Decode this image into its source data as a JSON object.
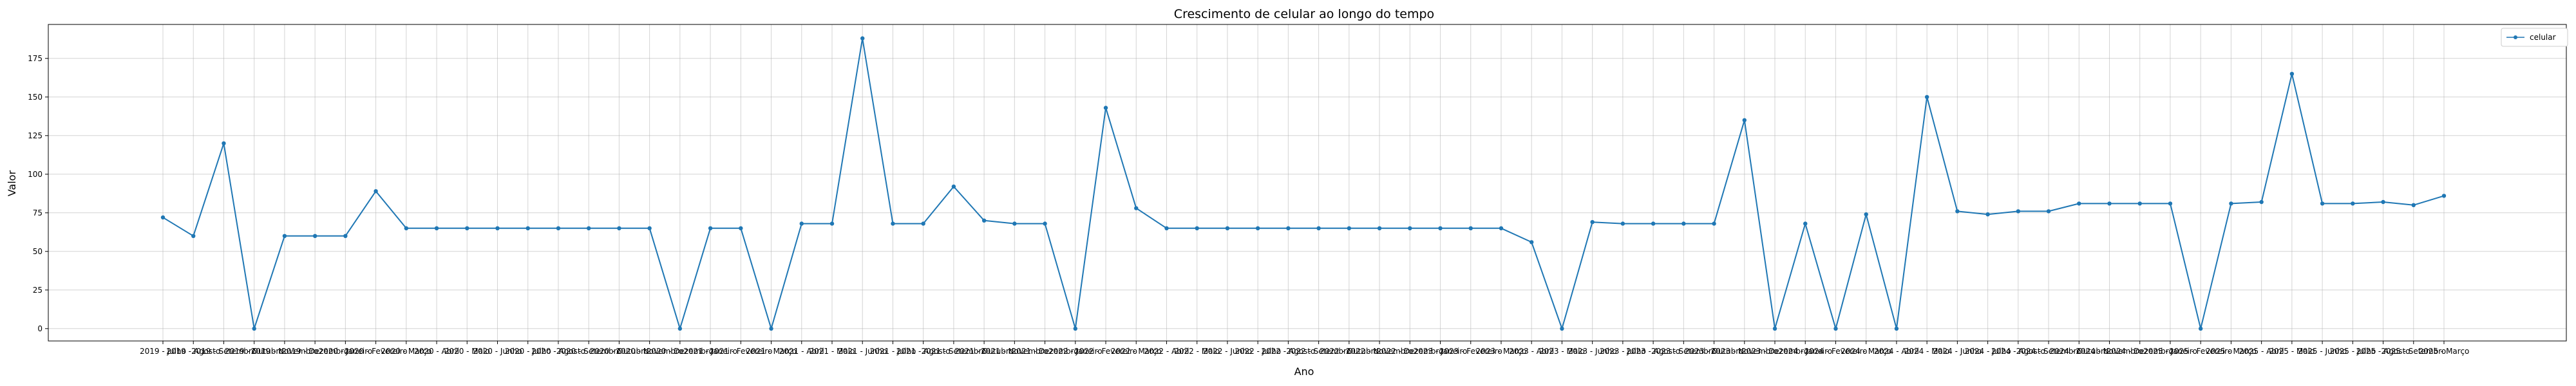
{
  "chart_data": {
    "type": "line",
    "title": "Crescimento de celular ao longo do tempo",
    "xlabel": "Ano",
    "ylabel": "Valor",
    "ylim": [
      -8,
      197
    ],
    "yticks": [
      0,
      25,
      50,
      75,
      100,
      125,
      150,
      175
    ],
    "grid": true,
    "legend_position": "top-right",
    "series": [
      {
        "name": "celular",
        "color": "#1f77b4",
        "values": [
          72,
          60,
          120,
          0,
          60,
          60,
          60,
          89,
          65,
          65,
          65,
          65,
          65,
          65,
          65,
          65,
          65,
          0,
          65,
          65,
          0,
          68,
          68,
          188,
          68,
          68,
          92,
          70,
          68,
          68,
          0,
          143,
          78,
          65,
          65,
          65,
          65,
          65,
          65,
          65,
          65,
          65,
          65,
          65,
          65,
          56,
          0,
          69,
          68,
          68,
          68,
          68,
          135,
          0,
          68,
          0,
          74,
          0,
          150,
          76,
          74,
          76,
          76,
          81,
          81,
          81,
          81,
          0,
          81,
          82,
          165,
          81,
          81,
          82,
          80,
          86
        ]
      }
    ],
    "categories": [
      "2019 - Julho",
      "2019 - Agosto",
      "2019 - Setembro",
      "2019 - Outubro",
      "2019 - Novembro",
      "2019 - Dezembro",
      "2020 - Janeiro",
      "2020 - Fevereiro",
      "2020 - Março",
      "2020 - Abril",
      "2020 - Maio",
      "2020 - Junho",
      "2020 - Julho",
      "2020 - Agosto",
      "2020 - Setembro",
      "2020 - Outubro",
      "2020 - Novembro",
      "2020 - Dezembro",
      "2021 - Janeiro",
      "2021 - Fevereiro",
      "2021 - Março",
      "2021 - Abril",
      "2021 - Maio",
      "2021 - Junho",
      "2021 - Julho",
      "2021 - Agosto",
      "2021 - Setembro",
      "2021 - Outubro",
      "2021 - Novembro",
      "2021 - Dezembro",
      "2022 - Janeiro",
      "2022 - Fevereiro",
      "2022 - Março",
      "2022 - Abril",
      "2022 - Maio",
      "2022 - Junho",
      "2022 - Julho",
      "2022 - Agosto",
      "2022 - Setembro",
      "2022 - Outubro",
      "2022 - Novembro",
      "2022 - Dezembro",
      "2023 - Janeiro",
      "2023 - Fevereiro",
      "2023 - Março",
      "2023 - Abril",
      "2023 - Maio",
      "2023 - Junho",
      "2023 - Julho",
      "2023 - Agosto",
      "2023 - Setembro",
      "2023 - Outubro",
      "2023 - Novembro",
      "2023 - Dezembro",
      "2024 - Janeiro",
      "2024 - Fevereiro",
      "2024 - Março",
      "2024 - Abril",
      "2024 - Maio",
      "2024 - Junho",
      "2024 - Julho",
      "2024 - Agosto",
      "2024 - Setembro",
      "2024 - Outubro",
      "2024 - Novembro",
      "2024 - Dezembro",
      "2025 - Janeiro",
      "2025 - Fevereiro",
      "2025 - Março",
      "2025 - Abril",
      "2025 - Maio",
      "2025 - Junho",
      "2025 - Julho",
      "2025 - Agosto",
      "2025 - Setembro",
      "2025 - Março"
    ]
  }
}
